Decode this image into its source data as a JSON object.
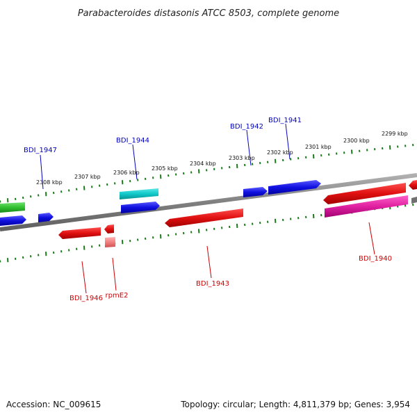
{
  "title": "Parabacteroides distasonis ATCC 8503, complete genome",
  "footer": {
    "accession": "Accession: NC_009615",
    "summary": "Topology: circular; Length: 4,811,379 bp; Genes: 3,954"
  },
  "ruler": {
    "labels": [
      "2308 kbp",
      "2307 kbp",
      "2306 kbp",
      "2305 kbp",
      "2304 kbp",
      "2303 kbp",
      "2302 kbp",
      "2301 kbp",
      "2300 kbp",
      "2299 kbp"
    ]
  },
  "genes_forward_labels": [
    "BDI_1947",
    "BDI_1944",
    "BDI_1942",
    "BDI_1941"
  ],
  "genes_reverse_labels": [
    "BDI_1946",
    "rpmE2",
    "BDI_1943",
    "BDI_1940"
  ],
  "colors": {
    "forward_label": "#0000bb",
    "reverse_label": "#cc0000",
    "tick": "#1a7a1a",
    "backbone": "#888888",
    "blue": "#1010e0",
    "cyan": "#10c8c8",
    "green": "#30c030",
    "red": "#e01010",
    "pink": "#e020a0",
    "lightred": "#f08080"
  }
}
